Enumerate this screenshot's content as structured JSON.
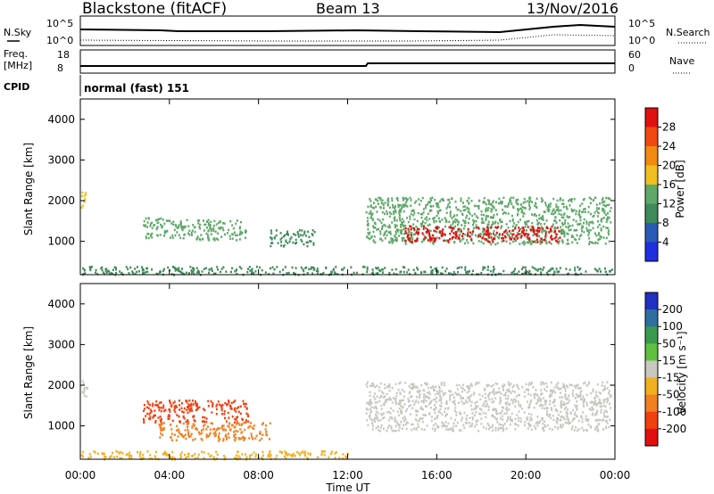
{
  "header": {
    "site": "Blackstone (fitACF)",
    "beam": "Beam 13",
    "date": "13/Nov/2016"
  },
  "top_panels": {
    "nsky_label": "N.Sky",
    "nsky_ticks": [
      "10^5",
      "10^0"
    ],
    "nsearch_label": "N.Search",
    "nsearch_ticks": [
      "10^5",
      "10^0"
    ],
    "freq_label_1": "Freq.",
    "freq_label_2": "[MHz]",
    "freq_ticks": [
      "18",
      "8"
    ],
    "nave_label": "Nave",
    "nave_ticks": [
      "60",
      "0"
    ],
    "cpid_label": "CPID",
    "cpid_text": "normal (fast) 151"
  },
  "x_axis": {
    "label": "Time UT",
    "ticks": [
      "00:00",
      "04:00",
      "08:00",
      "12:00",
      "16:00",
      "20:00",
      "00:00"
    ]
  },
  "power_panel": {
    "ylabel": "Slant Range [km]",
    "yticks": [
      "4000",
      "3000",
      "2000",
      "1000"
    ],
    "colorbar_label": "Power [dB]",
    "colorbar_ticks": [
      "28",
      "24",
      "20",
      "16",
      "12",
      "8",
      "4"
    ],
    "colors": [
      "#1f2fe0",
      "#2a5bb4",
      "#3f8a5a",
      "#5fa86a",
      "#f0c020",
      "#f08a10",
      "#f04a10",
      "#e01010"
    ]
  },
  "velocity_panel": {
    "ylabel": "Slant Range [km]",
    "yticks": [
      "4000",
      "3000",
      "2000",
      "1000"
    ],
    "colorbar_label": "Velocity [m s⁻¹]",
    "colorbar_ticks": [
      "200",
      "100",
      "50",
      "15",
      "-15",
      "-50",
      "-100",
      "-200"
    ],
    "colors": [
      "#2030c0",
      "#2f6fa0",
      "#3a9a50",
      "#60c040",
      "#c8c8c0",
      "#f0b020",
      "#f08020",
      "#f04010",
      "#e01010"
    ]
  },
  "chart_data": [
    {
      "type": "heatmap",
      "title": "Power",
      "xlabel": "Time UT",
      "ylabel": "Slant Range [km]",
      "xlim": [
        0,
        24
      ],
      "ylim": [
        180,
        4500
      ],
      "zlabel": "Power [dB]",
      "zlim": [
        0,
        30
      ],
      "regions": [
        {
          "t_start": 0.0,
          "t_end": 0.3,
          "range_start": 1800,
          "range_end": 2250,
          "power": 18
        },
        {
          "t_start": 2.8,
          "t_end": 4.2,
          "range_start": 1100,
          "range_end": 1600,
          "power": 14
        },
        {
          "t_start": 4.2,
          "t_end": 7.5,
          "range_start": 1050,
          "range_end": 1550,
          "power": 12
        },
        {
          "t_start": 8.5,
          "t_end": 10.5,
          "range_start": 900,
          "range_end": 1300,
          "power": 8
        },
        {
          "t_start": 12.8,
          "t_end": 23.8,
          "range_start": 950,
          "range_end": 2100,
          "power": 14
        },
        {
          "t_start": 14.5,
          "t_end": 21.5,
          "range_start": 1000,
          "range_end": 1400,
          "power": 28
        },
        {
          "t_start": 0.0,
          "t_end": 23.9,
          "range_start": 200,
          "range_end": 400,
          "power": 10
        }
      ]
    },
    {
      "type": "heatmap",
      "title": "Velocity",
      "xlabel": "Time UT",
      "ylabel": "Slant Range [km]",
      "xlim": [
        0,
        24
      ],
      "ylim": [
        180,
        4500
      ],
      "zlabel": "Velocity [m s⁻¹]",
      "zlim": [
        -200,
        200
      ],
      "regions": [
        {
          "t_start": 0.0,
          "t_end": 0.3,
          "range_start": 1700,
          "range_end": 2200,
          "velocity": 0
        },
        {
          "t_start": 2.8,
          "t_end": 7.5,
          "range_start": 1100,
          "range_end": 1650,
          "velocity": -150
        },
        {
          "t_start": 3.5,
          "t_end": 8.5,
          "range_start": 650,
          "range_end": 1100,
          "velocity": -100
        },
        {
          "t_start": 12.8,
          "t_end": 23.8,
          "range_start": 900,
          "range_end": 2100,
          "velocity": 0
        },
        {
          "t_start": 0.0,
          "t_end": 12.0,
          "range_start": 200,
          "range_end": 400,
          "velocity": -50
        }
      ]
    }
  ]
}
